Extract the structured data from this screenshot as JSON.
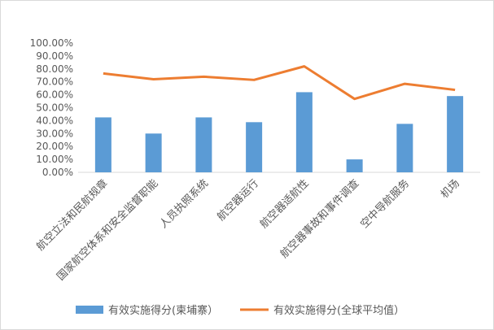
{
  "chart_data": {
    "type": "bar+line",
    "categories": [
      "航空立法和民航规章",
      "国家航空体系和安全监督职能",
      "人员执照系统",
      "航空器运行",
      "航空器适航性",
      "航空器事故和事件调查",
      "空中导航服务",
      "机场"
    ],
    "series": [
      {
        "name": "有效实施得分(柬埔寨）",
        "type": "bar",
        "color": "#5b9bd5",
        "values": [
          42.5,
          30.0,
          42.5,
          38.8,
          62.0,
          10.0,
          37.5,
          59.0
        ]
      },
      {
        "name": "有效实施得分(全球平均值）",
        "type": "line",
        "color": "#ed7d31",
        "values": [
          76.5,
          72.0,
          74.0,
          71.5,
          82.0,
          56.8,
          68.5,
          63.8
        ]
      }
    ],
    "yticks": [
      "0.00%",
      "10.00%",
      "20.00%",
      "30.00%",
      "40.00%",
      "50.00%",
      "60.00%",
      "70.00%",
      "80.00%",
      "90.00%",
      "100.00%"
    ],
    "ylim": [
      0,
      100
    ],
    "grid": false,
    "legend_position": "bottom"
  }
}
